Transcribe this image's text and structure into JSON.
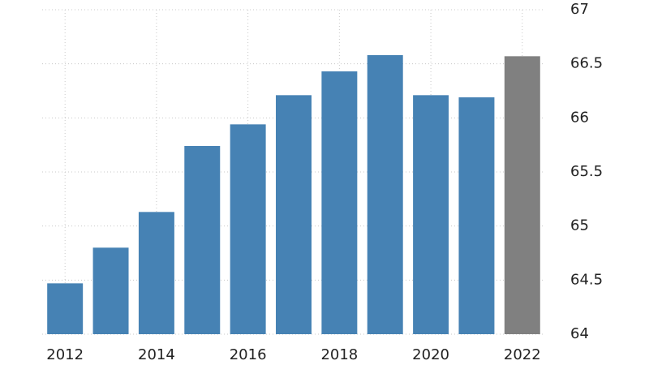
{
  "chart_data": {
    "type": "bar",
    "categories": [
      "2012",
      null,
      "2014",
      null,
      "2016",
      null,
      "2018",
      null,
      "2020",
      null,
      "2022"
    ],
    "values": [
      64.47,
      64.8,
      65.13,
      65.74,
      65.94,
      66.21,
      66.43,
      66.58,
      66.21,
      66.19,
      66.57
    ],
    "colors": [
      "#4682b4",
      "#4682b4",
      "#4682b4",
      "#4682b4",
      "#4682b4",
      "#4682b4",
      "#4682b4",
      "#4682b4",
      "#4682b4",
      "#4682b4",
      "#808080"
    ],
    "ylim": [
      64,
      67
    ],
    "yticks": [
      64,
      64.5,
      65,
      65.5,
      66,
      66.5,
      67
    ],
    "grid": true
  }
}
